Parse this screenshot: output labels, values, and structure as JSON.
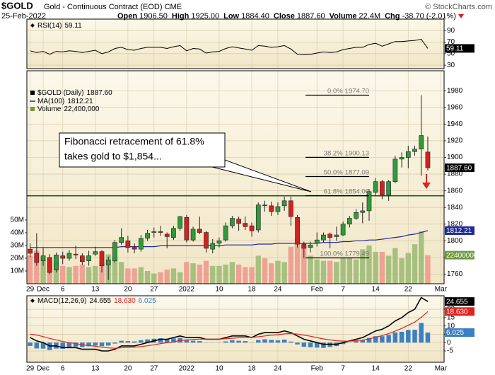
{
  "header": {
    "symbol": "$GOLD",
    "name": "Gold - Continuous Contract (EOD) CME",
    "date": "25-Feb-2022",
    "credit": "© StockCharts.com",
    "quote": [
      {
        "label": "Open",
        "value": "1906.50"
      },
      {
        "label": "High",
        "value": "1925.00"
      },
      {
        "label": "Low",
        "value": "1884.40"
      },
      {
        "label": "Close",
        "value": "1887.60"
      },
      {
        "label": "Volume",
        "value": "22.4M"
      },
      {
        "label": "Chg",
        "value": "-38.70 (-2.01%)"
      }
    ]
  },
  "chart_data": [
    {
      "type": "candlestick",
      "name": "$GOLD (Daily)",
      "last_label": "1887.60",
      "up_color": "#2f9a3a",
      "down_color": "#d42020",
      "grid": true,
      "categories": [
        "29",
        null,
        "Dec",
        null,
        null,
        "6",
        null,
        null,
        null,
        null,
        "13",
        null,
        null,
        null,
        null,
        "20",
        null,
        null,
        null,
        "27",
        null,
        null,
        null,
        null,
        "2022",
        null,
        null,
        null,
        null,
        "10",
        null,
        null,
        null,
        null,
        "18",
        null,
        null,
        null,
        "24",
        null,
        null,
        null,
        null,
        null,
        "Feb",
        null,
        null,
        null,
        "7",
        null,
        null,
        null,
        null,
        "14",
        null,
        null,
        null,
        null,
        "22",
        null,
        null,
        null,
        null,
        "Mar"
      ],
      "open": [
        1790,
        1785,
        1776,
        1780,
        1765,
        1782,
        1779,
        1784,
        1782,
        1776,
        1784,
        1787,
        1771,
        1776,
        1798,
        1800,
        1792,
        1790,
        1803,
        1810,
        1811,
        1808,
        1804,
        1815,
        1828,
        1801,
        1814,
        1810,
        1790,
        1797,
        1801,
        1818,
        1826,
        1821,
        1818,
        1813,
        1843,
        1842,
        1835,
        1842,
        1848,
        1828,
        1796,
        1792,
        1797,
        1801,
        1808,
        1805,
        1807,
        1820,
        1827,
        1834,
        1836,
        1858,
        1871,
        1855,
        1871,
        1898,
        1900,
        1907,
        1910,
        1906.5,
        null,
        null
      ],
      "high": [
        1797,
        1809,
        1792,
        1784,
        1786,
        1787,
        1789,
        1794,
        1785,
        1788,
        1793,
        1789,
        1781,
        1801,
        1815,
        1806,
        1797,
        1807,
        1813,
        1816,
        1818,
        1810,
        1818,
        1830,
        1831,
        1817,
        1829,
        1812,
        1802,
        1804,
        1822,
        1830,
        1829,
        1829,
        1822,
        1846,
        1848,
        1847,
        1846,
        1853,
        1853,
        1831,
        1799,
        1799,
        1810,
        1810,
        1810,
        1817,
        1823,
        1830,
        1838,
        1846,
        1862,
        1875,
        1873,
        1873,
        1902,
        1906,
        1914,
        1914,
        1974.7,
        1925,
        null,
        null
      ],
      "low": [
        1780,
        1770,
        1770,
        1760,
        1762,
        1772,
        1776,
        1778,
        1771,
        1770,
        1782,
        1762,
        1753,
        1774,
        1795,
        1786,
        1785,
        1787,
        1800,
        1804,
        1806,
        1791,
        1801,
        1812,
        1798,
        1799,
        1808,
        1786,
        1785,
        1792,
        1799,
        1815,
        1812,
        1813,
        1805,
        1810,
        1835,
        1830,
        1831,
        1836,
        1818,
        1792,
        1779.49,
        1786,
        1793,
        1798,
        1791,
        1800,
        1806,
        1816,
        1825,
        1821,
        1824,
        1854,
        1850,
        1848,
        1869,
        1888,
        1887,
        1902,
        1878,
        1884.4,
        null,
        null
      ],
      "close": [
        1785,
        1774,
        1782,
        1762,
        1783,
        1779,
        1785,
        1783,
        1775,
        1782,
        1787,
        1770,
        1777,
        1798,
        1804,
        1792,
        1790,
        1803,
        1809,
        1811,
        1810,
        1805,
        1815,
        1829,
        1801,
        1814,
        1810,
        1791,
        1797,
        1800,
        1818,
        1827,
        1821,
        1817,
        1812,
        1843,
        1842,
        1835,
        1841,
        1848,
        1829,
        1796,
        1791,
        1795,
        1801,
        1807,
        1804,
        1807,
        1820,
        1827,
        1834,
        1836,
        1859,
        1871,
        1855,
        1871,
        1898,
        1900,
        1907,
        1910,
        1926.3,
        1887.6,
        null,
        null
      ],
      "ylim": [
        1748.5,
        2004
      ],
      "yticks": [
        1760,
        1780,
        1800,
        1820,
        1840,
        1860,
        1880,
        1900,
        1920,
        1940,
        1960,
        1980
      ],
      "y2lim": [
        0,
        167000000
      ],
      "y2ticks": [
        {
          "value": 10000000,
          "label": "10M"
        },
        {
          "value": 20000000,
          "label": "20M"
        },
        {
          "value": 30000000,
          "label": "30M"
        },
        {
          "value": 40000000,
          "label": "40M"
        },
        {
          "value": 50000000,
          "label": "50M"
        }
      ],
      "series": [
        {
          "name": "MA(100)",
          "color": "#1f2a9c",
          "last_label": "1812.21",
          "values": [
            1792,
            1792,
            1792,
            1792,
            1792,
            1792,
            1792,
            1792,
            1792,
            1792,
            1792,
            1792,
            1792,
            1792,
            1793,
            1793,
            1793,
            1793,
            1793,
            1793,
            1794,
            1794,
            1794,
            1794,
            1794,
            1794,
            1794,
            1794,
            1794,
            1794,
            1795,
            1795,
            1795,
            1795,
            1795,
            1796,
            1796,
            1796,
            1797,
            1797,
            1797,
            1797,
            1797,
            1797,
            1797,
            1798,
            1798,
            1798,
            1799,
            1799,
            1800,
            1800,
            1801,
            1801,
            1802,
            1803,
            1804,
            1805,
            1807,
            1808,
            1810,
            1812.21,
            null,
            null
          ]
        },
        {
          "name": "Volume",
          "axis": "y2",
          "color": "#6e9a3c",
          "up_color": "#9dbb78",
          "down_color": "#ee9a8e",
          "value_label": "22,400,000",
          "box_label": "22400000",
          "values": [
            22000000,
            26000000,
            18000000,
            20000000,
            17000000,
            14000000,
            13000000,
            14000000,
            15000000,
            13000000,
            14000000,
            17000000,
            23000000,
            21000000,
            17000000,
            12000000,
            12000000,
            13000000,
            10000000,
            8000000,
            9000000,
            11000000,
            12000000,
            9000000,
            17000000,
            16000000,
            15000000,
            18000000,
            14000000,
            14000000,
            15000000,
            17000000,
            15000000,
            13000000,
            13000000,
            22000000,
            20000000,
            16000000,
            18000000,
            17000000,
            29000000,
            35000000,
            30000000,
            22000000,
            19000000,
            18000000,
            18000000,
            17000000,
            20000000,
            20000000,
            19000000,
            27000000,
            30000000,
            25000000,
            25000000,
            22000000,
            28000000,
            20000000,
            24000000,
            31000000,
            41000000,
            22400000,
            null,
            null
          ]
        }
      ],
      "fibonacci": {
        "line_color": "#000000",
        "support_color": "#1d5a1d",
        "levels": [
          {
            "label": "0.0%",
            "value": 1974.7,
            "value_label": "1974.70"
          },
          {
            "label": "38.2%",
            "value": 1900.13
          },
          {
            "label": "50.0%",
            "value": 1877.09
          },
          {
            "label": "61.8%",
            "value": 1854.06
          },
          {
            "label": "100.0%",
            "value": 1779.49
          }
        ]
      },
      "annotation": [
        "Fibonacci retracement of 61.8%",
        "takes gold to $1,854..."
      ]
    },
    {
      "type": "line",
      "name": "RSI(14)",
      "color": "#000000",
      "grid": true,
      "ylim": [
        24,
        110
      ],
      "yticks": [
        30,
        50,
        70,
        90
      ],
      "values": [
        55,
        52,
        54,
        49,
        54,
        53,
        55,
        54,
        52,
        54,
        56,
        50,
        53,
        59,
        61,
        57,
        56,
        59,
        61,
        61,
        61,
        59,
        62,
        64,
        55,
        59,
        58,
        51,
        53,
        54,
        59,
        62,
        60,
        58,
        56,
        64,
        63,
        61,
        62,
        64,
        58,
        49,
        48,
        49,
        51,
        53,
        52,
        53,
        57,
        59,
        61,
        61,
        66,
        68,
        63,
        67,
        71,
        71,
        72,
        73,
        75,
        59.11,
        null,
        null
      ]
    },
    {
      "type": "macd",
      "name": "MACD(12,26,9)",
      "grid": true,
      "ylim": [
        -11.8,
        28.1
      ],
      "yticks": [
        -5,
        0,
        5,
        10,
        15,
        20
      ],
      "categories": [
        "29",
        null,
        "Dec",
        null,
        null,
        "6",
        null,
        null,
        null,
        null,
        "13",
        null,
        null,
        null,
        null,
        "20",
        null,
        null,
        null,
        "27",
        null,
        null,
        null,
        null,
        "2022",
        null,
        null,
        null,
        null,
        "10",
        null,
        null,
        null,
        null,
        "18",
        null,
        null,
        null,
        "24",
        null,
        null,
        null,
        null,
        null,
        "Feb",
        null,
        null,
        null,
        "7",
        null,
        null,
        null,
        null,
        "14",
        null,
        null,
        null,
        null,
        "22",
        null,
        null,
        null,
        null,
        "Mar"
      ],
      "series": [
        {
          "color": "#000000",
          "last_label": "24.655",
          "values": [
            3,
            1,
            0,
            -2,
            -2,
            -3,
            -3,
            -3,
            -4,
            -4,
            -4,
            -5,
            -5,
            -4,
            -2,
            -2,
            -2,
            -1,
            0,
            1,
            2,
            2,
            3,
            4,
            3,
            3,
            3,
            2,
            2,
            2,
            3,
            4,
            4,
            4,
            3,
            5,
            6,
            6,
            6,
            7,
            6,
            4,
            2,
            1,
            0,
            -1,
            -1,
            -1,
            0,
            1,
            2,
            3,
            5,
            7,
            8,
            10,
            13,
            15,
            18,
            20,
            27,
            24.655,
            null,
            null
          ]
        },
        {
          "color": "#e0231f",
          "last_label": "18.630",
          "values": [
            5,
            4.5,
            3.6,
            2.5,
            1.6,
            0.7,
            0,
            -0.6,
            -1.3,
            -1.8,
            -2.2,
            -2.8,
            -3.2,
            -3.4,
            -3.1,
            -2.9,
            -2.7,
            -2.4,
            -1.9,
            -1.3,
            -0.6,
            -0.1,
            0.5,
            1.2,
            1.6,
            1.9,
            2.1,
            2.1,
            2.1,
            2.1,
            2.3,
            2.6,
            2.9,
            3.1,
            3.1,
            3.5,
            4,
            4.4,
            4.7,
            5.2,
            5.4,
            5.1,
            4.5,
            3.8,
            3,
            2.2,
            1.6,
            1.1,
            0.9,
            0.9,
            1.1,
            1.5,
            2.2,
            3.2,
            4.2,
            5.4,
            6.9,
            8.5,
            10.4,
            12.3,
            15.2,
            18.63,
            null,
            null
          ]
        },
        {
          "color": "#3b7fc4",
          "histogram": true,
          "last_label": "6.025",
          "values": [
            -2,
            -3.5,
            -3.6,
            -4.5,
            -3.6,
            -3.7,
            -3,
            -2.4,
            -2.7,
            -2.2,
            -1.8,
            -2.2,
            -1.8,
            -0.6,
            1.1,
            0.9,
            0.7,
            1.4,
            1.9,
            2.3,
            2.6,
            2.1,
            2.5,
            2.8,
            1.4,
            1.1,
            0.9,
            -0.1,
            -0.1,
            -0.1,
            0.7,
            1.4,
            1.1,
            0.9,
            -0.1,
            1.5,
            2,
            1.6,
            1.3,
            1.8,
            0.6,
            -1.1,
            -2.5,
            -2.8,
            -3,
            -3.2,
            -2.6,
            -2.1,
            -0.9,
            0.1,
            0.9,
            1.5,
            2.8,
            3.8,
            3.8,
            4.6,
            6.1,
            6.5,
            7.6,
            7.7,
            11.8,
            6.025,
            null,
            null
          ]
        }
      ]
    }
  ]
}
